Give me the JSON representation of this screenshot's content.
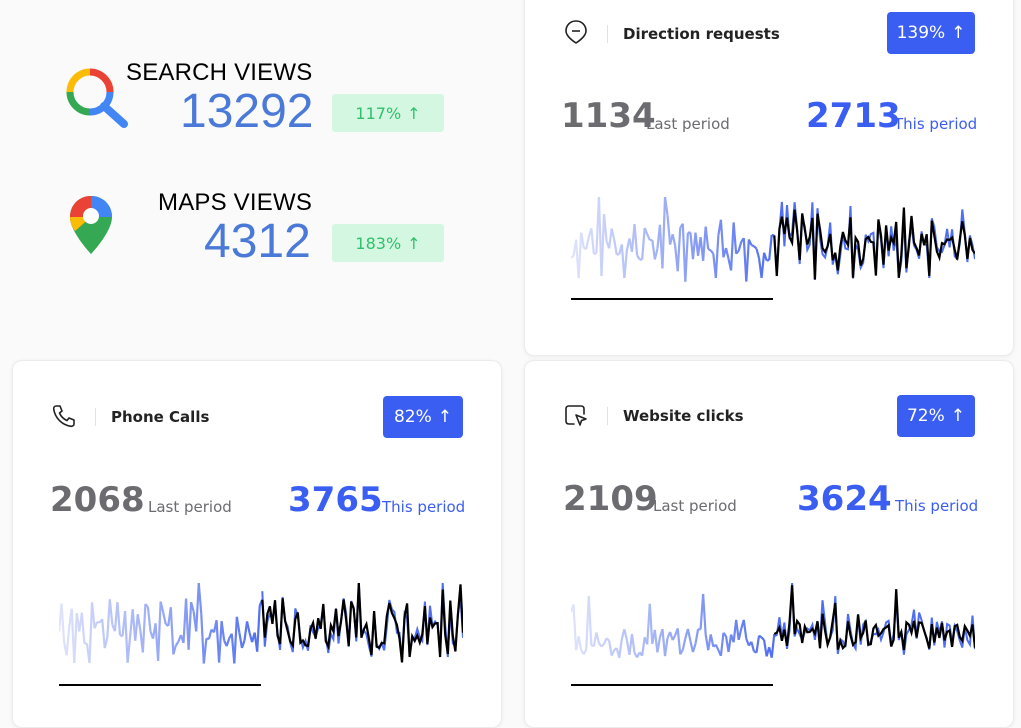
{
  "search_views": {
    "label": "SEARCH VIEWS",
    "value": "13292",
    "change": "117%",
    "arrow": "↑",
    "icon": "google-search-icon"
  },
  "maps_views": {
    "label": "MAPS VIEWS",
    "value": "4312",
    "change": "183%",
    "arrow": "↑",
    "icon": "google-maps-icon"
  },
  "direction_requests": {
    "title": "Direction requests",
    "icon": "map-pin-minus-icon",
    "change": "139%",
    "arrow": "↑",
    "last_value": "1134",
    "last_label": "Last period",
    "this_value": "2713",
    "this_label": "This period"
  },
  "phone_calls": {
    "title": "Phone Calls",
    "icon": "phone-icon",
    "change": "82%",
    "arrow": "↑",
    "last_value": "2068",
    "last_label": "Last period",
    "this_value": "3765",
    "this_label": "This period"
  },
  "website_clicks": {
    "title": "Website clicks",
    "icon": "cursor-click-icon",
    "change": "72%",
    "arrow": "↑",
    "last_value": "2109",
    "last_label": "Last period",
    "this_value": "3624",
    "this_label": "This period"
  },
  "colors": {
    "accent": "#3b5ef2",
    "views_blue": "#4a79d8",
    "green_bg": "#d4f7e2",
    "green_text": "#2fc26b",
    "last_gray": "#6b6b70",
    "spark_light": "#dfe3fb",
    "spark_blue": "#4f6ef0",
    "spark_dark": "#000000"
  }
}
